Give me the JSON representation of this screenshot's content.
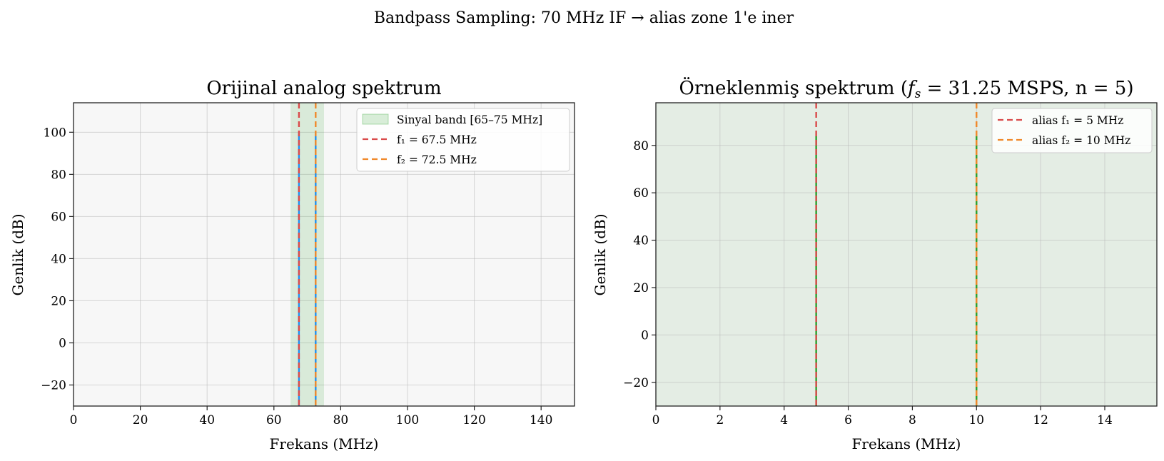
{
  "figure": {
    "suptitle": "Bandpass Sampling: 70 MHz IF → alias zone 1'e iner"
  },
  "chart_data": [
    {
      "type": "line",
      "title": "Orijinal analog spektrum",
      "xlabel": "Frekans (MHz)",
      "ylabel": "Genlik (dB)",
      "xlim": [
        0,
        150
      ],
      "ylim": [
        -30,
        114
      ],
      "xticks": [
        0,
        20,
        40,
        60,
        80,
        100,
        120,
        140
      ],
      "yticks": [
        -20,
        0,
        20,
        40,
        60,
        80,
        100
      ],
      "grid": true,
      "background": "#f7f7f7",
      "band": {
        "label": "Sinyal bandı [65–75 MHz]",
        "x0": 65,
        "x1": 75,
        "color": "#2ca02c"
      },
      "spikes": [
        {
          "x": 67.5,
          "value": 100,
          "color": "#1f8ff0"
        },
        {
          "x": 72.5,
          "value": 100,
          "color": "#1f8ff0"
        }
      ],
      "vlines": [
        {
          "label": "f₁ = 67.5 MHz",
          "x": 67.5,
          "color": "#d94a4a"
        },
        {
          "label": "f₂ = 72.5 MHz",
          "x": 72.5,
          "color": "#f0882a"
        }
      ],
      "legend_position": "top-right"
    },
    {
      "type": "line",
      "title_prefix": "Örneklenmiş spektrum (",
      "title_symbol": "f",
      "title_subscript": "s",
      "title_suffix": " = 31.25 MSPS, n = 5)",
      "xlabel": "Frekans (MHz)",
      "ylabel": "Genlik (dB)",
      "xlim": [
        0,
        15.625
      ],
      "ylim": [
        -30,
        98
      ],
      "xticks": [
        0,
        2,
        4,
        6,
        8,
        10,
        12,
        14
      ],
      "yticks": [
        -20,
        0,
        20,
        40,
        60,
        80
      ],
      "grid": true,
      "background": "#e4ede4",
      "spikes": [
        {
          "x": 5,
          "value": 84,
          "color": "#2ca02c"
        },
        {
          "x": 10,
          "value": 84,
          "color": "#2ca02c"
        }
      ],
      "vlines": [
        {
          "label": "alias f₁ = 5 MHz",
          "x": 5,
          "color": "#d94a4a"
        },
        {
          "label": "alias f₂ = 10 MHz",
          "x": 10,
          "color": "#f0882a"
        }
      ],
      "legend_position": "top-right"
    }
  ]
}
